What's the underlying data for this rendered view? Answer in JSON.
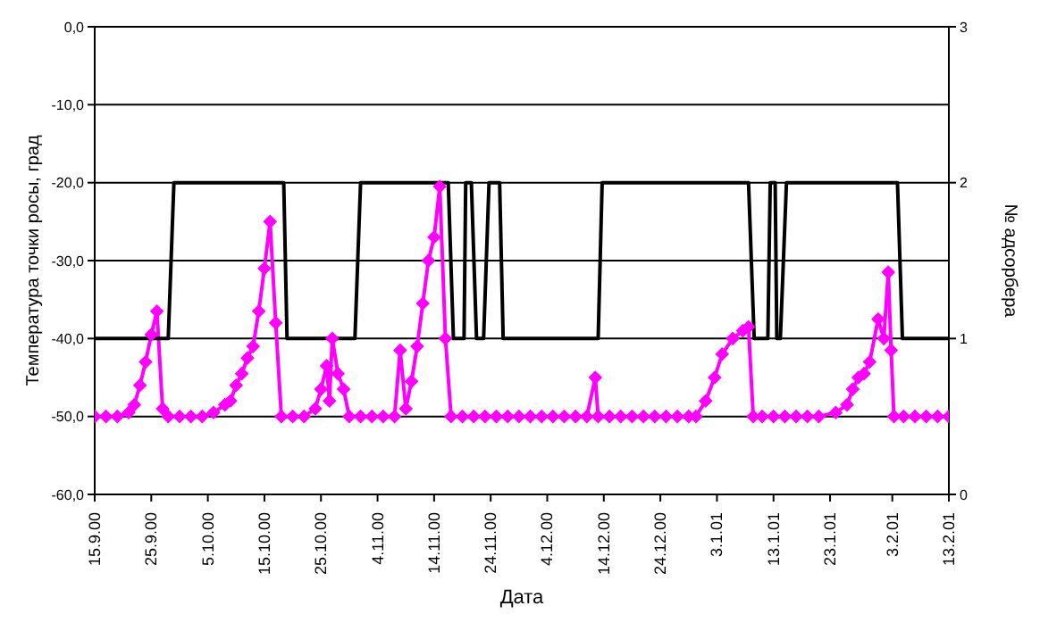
{
  "chart_data": {
    "type": "line",
    "xlabel": "Дата",
    "ylabel": "Температура точки росы, град",
    "y2label": "№ адсорбера",
    "xlim": [
      "2000-09-15",
      "2001-02-13"
    ],
    "xticks": [
      {
        "value": "2000-09-15",
        "label": "15.9.00"
      },
      {
        "value": "2000-09-25",
        "label": "25.9.00"
      },
      {
        "value": "2000-10-05",
        "label": "5.10.00"
      },
      {
        "value": "2000-10-15",
        "label": "15.10.00"
      },
      {
        "value": "2000-10-25",
        "label": "25.10.00"
      },
      {
        "value": "2000-11-04",
        "label": "4.11.00"
      },
      {
        "value": "2000-11-14",
        "label": "14.11.00"
      },
      {
        "value": "2000-11-24",
        "label": "24.11.00"
      },
      {
        "value": "2000-12-04",
        "label": "4.12.00"
      },
      {
        "value": "2000-12-14",
        "label": "14.12.00"
      },
      {
        "value": "2000-12-24",
        "label": "24.12.00"
      },
      {
        "value": "2001-01-03",
        "label": "3.1.01"
      },
      {
        "value": "2001-01-13",
        "label": "13.1.01"
      },
      {
        "value": "2001-01-23",
        "label": "23.1.01"
      },
      {
        "value": "2001-02-03",
        "label": "3.2.01"
      },
      {
        "value": "2001-02-13",
        "label": "13.2.01"
      }
    ],
    "ylim": [
      -60,
      0
    ],
    "yticks": [
      {
        "value": -60,
        "label": "-60,0"
      },
      {
        "value": -50,
        "label": "-50,0"
      },
      {
        "value": -40,
        "label": "-40,0"
      },
      {
        "value": -30,
        "label": "-30,0"
      },
      {
        "value": -20,
        "label": "-20,0"
      },
      {
        "value": -10,
        "label": "-10,0"
      },
      {
        "value": 0,
        "label": "0,0"
      }
    ],
    "y2lim": [
      0,
      3
    ],
    "y2ticks": [
      0,
      1,
      2,
      3
    ],
    "grid": true,
    "line_style": "solid",
    "series": [
      {
        "color": "#ff00ff",
        "marker": "diamond",
        "x": [
          "2000-09-15",
          "2000-09-17",
          "2000-09-19",
          "2000-09-21",
          "2000-09-22",
          "2000-09-23",
          "2000-09-24",
          "2000-09-25",
          "2000-09-26",
          "2000-09-27",
          "2000-09-28",
          "2000-09-30",
          "2000-10-02",
          "2000-10-04",
          "2000-10-06",
          "2000-10-08",
          "2000-10-09",
          "2000-10-10",
          "2000-10-11",
          "2000-10-12",
          "2000-10-13",
          "2000-10-14",
          "2000-10-15",
          "2000-10-16",
          "2000-10-17",
          "2000-10-18",
          "2000-10-20",
          "2000-10-22",
          "2000-10-24",
          "2000-10-25",
          "2000-10-26",
          "2000-10-26T12:00",
          "2000-10-27",
          "2000-10-28",
          "2000-10-29",
          "2000-10-30",
          "2000-11-01",
          "2000-11-03",
          "2000-11-05",
          "2000-11-07",
          "2000-11-08",
          "2000-11-09",
          "2000-11-10",
          "2000-11-11",
          "2000-11-12",
          "2000-11-13",
          "2000-11-14",
          "2000-11-15",
          "2000-11-16",
          "2000-11-17",
          "2000-11-19",
          "2000-11-21",
          "2000-11-23",
          "2000-11-25",
          "2000-11-27",
          "2000-11-29",
          "2000-12-01",
          "2000-12-03",
          "2000-12-05",
          "2000-12-07",
          "2000-12-09",
          "2000-12-11",
          "2000-12-12T12:00",
          "2000-12-13",
          "2000-12-15",
          "2000-12-17",
          "2000-12-19",
          "2000-12-21",
          "2000-12-23",
          "2000-12-25",
          "2000-12-27",
          "2000-12-29",
          "2000-12-30T07:00",
          "2001-01-01",
          "2001-01-02T14:00",
          "2001-01-03T22:00",
          "2001-01-05T19:00",
          "2001-01-07T14:00",
          "2001-01-08T14:00",
          "2001-01-09T10:00",
          "2001-01-11",
          "2001-01-13",
          "2001-01-15",
          "2001-01-17",
          "2001-01-19",
          "2001-01-21",
          "2001-01-24",
          "2001-01-26",
          "2001-01-27",
          "2001-01-28",
          "2001-01-29",
          "2001-01-30",
          "2001-01-31T12:00",
          "2001-02-01T12:00",
          "2001-02-02T07:00",
          "2001-02-02T19:00",
          "2001-02-03T07:00",
          "2001-02-05",
          "2001-02-07",
          "2001-02-09",
          "2001-02-11",
          "2001-02-13"
        ],
        "values": [
          -50,
          -50,
          -50,
          -49.5,
          -48.5,
          -46,
          -43,
          -39.5,
          -36.5,
          -49,
          -50,
          -50,
          -50,
          -50,
          -49.5,
          -48.5,
          -48,
          -46,
          -44.5,
          -42.5,
          -41,
          -36.5,
          -31,
          -25,
          -38,
          -50,
          -50,
          -50,
          -49,
          -46.5,
          -43.5,
          -48,
          -40,
          -44.5,
          -46.5,
          -50,
          -50,
          -50,
          -50,
          -50,
          -41.5,
          -49,
          -45.5,
          -41,
          -35.5,
          -30,
          -27,
          -20.5,
          -40,
          -50,
          -50,
          -50,
          -50,
          -50,
          -50,
          -50,
          -50,
          -50,
          -50,
          -50,
          -50,
          -50,
          -45,
          -50,
          -50,
          -50,
          -50,
          -50,
          -50,
          -50,
          -50,
          -50,
          -50,
          -48,
          -45,
          -42,
          -40,
          -39,
          -38.5,
          -50,
          -50,
          -50,
          -50,
          -50,
          -50,
          -50,
          -49.5,
          -48.5,
          -46.5,
          -45,
          -44.5,
          -43,
          -37.5,
          -40,
          -31.5,
          -41.5,
          -50,
          -50,
          -50,
          -50,
          -50,
          -50
        ]
      },
      {
        "color": "#000000",
        "marker": "none",
        "axis": "y2",
        "x": [
          "2000-09-15",
          "2000-09-28",
          "2000-09-29",
          "2000-10-18T10:00",
          "2000-10-19",
          "2000-10-31",
          "2000-11-01",
          "2000-11-16T12:00",
          "2000-11-17T10:00",
          "2000-11-19T07:00",
          "2000-11-19T14:00",
          "2000-11-20T14:00",
          "2000-11-21T12:00",
          "2000-11-22T18:00",
          "2000-11-23T17:00",
          "2000-11-25T14:00",
          "2000-11-26T05:00",
          "2000-12-13",
          "2000-12-13T17:00",
          "2001-01-08T14:00",
          "2001-01-09T14:00",
          "2001-01-12",
          "2001-01-12T10:00",
          "2001-01-13T07:00",
          "2001-01-13T14:00",
          "2001-01-14T05:00",
          "2001-01-15T07:00",
          "2001-02-03T22:00",
          "2001-02-04T19:00",
          "2001-02-13"
        ],
        "values": [
          1,
          1,
          2,
          2,
          1,
          1,
          2,
          2,
          1,
          1,
          2,
          2,
          1,
          1,
          2,
          2,
          1,
          1,
          2,
          2,
          1,
          1,
          2,
          2,
          1,
          1,
          2,
          2,
          1,
          1
        ]
      }
    ]
  }
}
